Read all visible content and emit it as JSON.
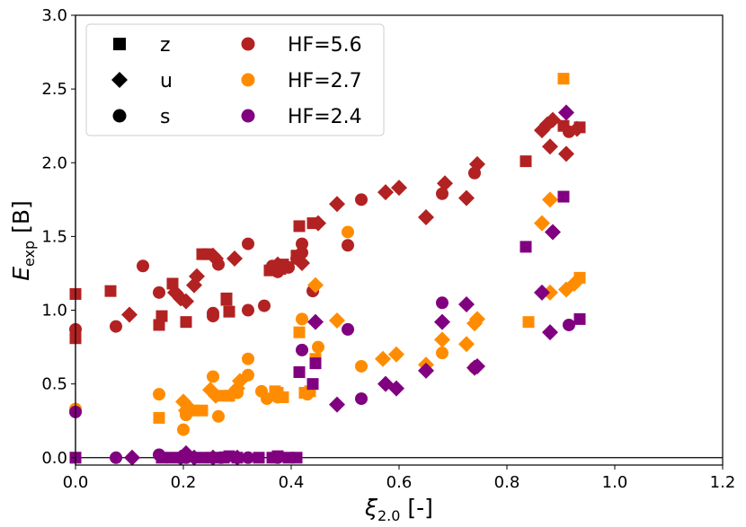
{
  "chart_data": {
    "type": "scatter",
    "title": "",
    "xlabel": {
      "symbol": "ξ",
      "subscript": "2.0",
      "unit": " [-]"
    },
    "ylabel": {
      "symbol": "E",
      "subscript": "exp",
      "unit": " [B]"
    },
    "xlim": [
      0.0,
      1.2
    ],
    "ylim": [
      -0.05,
      3.0
    ],
    "xticks": [
      "0.0",
      "0.2",
      "0.4",
      "0.6",
      "0.8",
      "1.0",
      "1.2"
    ],
    "yticks": [
      "0.0",
      "0.5",
      "1.0",
      "1.5",
      "2.0",
      "2.5",
      "3.0"
    ],
    "grid": false,
    "reference_lines": {
      "horizontal_y": 0.0,
      "vertical_x": 0.0
    },
    "legend_location": "top-left",
    "marker_legend": [
      {
        "marker": "square",
        "label": "z"
      },
      {
        "marker": "diamond",
        "label": "u"
      },
      {
        "marker": "circle",
        "label": "s"
      }
    ],
    "series": [
      {
        "name": "HF=5.6",
        "color": "#b22222",
        "z": [
          [
            0.0,
            1.11
          ],
          [
            0.0,
            0.81
          ],
          [
            0.065,
            1.13
          ],
          [
            0.155,
            0.9
          ],
          [
            0.16,
            0.96
          ],
          [
            0.18,
            1.18
          ],
          [
            0.205,
            0.92
          ],
          [
            0.235,
            1.38
          ],
          [
            0.245,
            1.38
          ],
          [
            0.28,
            1.07
          ],
          [
            0.285,
            0.99
          ],
          [
            0.28,
            1.08
          ],
          [
            0.36,
            1.27
          ],
          [
            0.38,
            1.28
          ],
          [
            0.385,
            1.31
          ],
          [
            0.41,
            1.37
          ],
          [
            0.415,
            1.57
          ],
          [
            0.44,
            1.59
          ],
          [
            0.835,
            2.01
          ],
          [
            0.905,
            2.25
          ],
          [
            0.935,
            2.24
          ]
        ],
        "u": [
          [
            0.1,
            0.97
          ],
          [
            0.185,
            1.12
          ],
          [
            0.195,
            1.08
          ],
          [
            0.205,
            1.06
          ],
          [
            0.22,
            1.17
          ],
          [
            0.225,
            1.23
          ],
          [
            0.255,
            1.37
          ],
          [
            0.26,
            1.35
          ],
          [
            0.295,
            1.35
          ],
          [
            0.375,
            1.31
          ],
          [
            0.42,
            1.32
          ],
          [
            0.45,
            1.59
          ],
          [
            0.485,
            1.72
          ],
          [
            0.575,
            1.8
          ],
          [
            0.6,
            1.83
          ],
          [
            0.65,
            1.63
          ],
          [
            0.685,
            1.86
          ],
          [
            0.725,
            1.76
          ],
          [
            0.745,
            1.99
          ],
          [
            0.865,
            2.22
          ],
          [
            0.875,
            2.26
          ],
          [
            0.885,
            2.29
          ],
          [
            0.88,
            2.11
          ],
          [
            0.91,
            2.06
          ],
          [
            0.93,
            2.23
          ]
        ],
        "s": [
          [
            0.0,
            0.87
          ],
          [
            0.075,
            0.89
          ],
          [
            0.125,
            1.3
          ],
          [
            0.155,
            1.12
          ],
          [
            0.255,
            0.98
          ],
          [
            0.255,
            0.96
          ],
          [
            0.265,
            1.31
          ],
          [
            0.32,
            1.0
          ],
          [
            0.32,
            1.45
          ],
          [
            0.35,
            1.03
          ],
          [
            0.365,
            1.3
          ],
          [
            0.375,
            1.26
          ],
          [
            0.395,
            1.29
          ],
          [
            0.41,
            1.35
          ],
          [
            0.42,
            1.45
          ],
          [
            0.42,
            1.39
          ],
          [
            0.44,
            1.13
          ],
          [
            0.505,
            1.44
          ],
          [
            0.53,
            1.75
          ],
          [
            0.68,
            1.79
          ],
          [
            0.74,
            1.93
          ],
          [
            0.915,
            2.21
          ]
        ]
      },
      {
        "name": "HF=2.7",
        "color": "#ff8c00",
        "z": [
          [
            0.0,
            0.0
          ],
          [
            0.155,
            0.27
          ],
          [
            0.22,
            0.32
          ],
          [
            0.235,
            0.32
          ],
          [
            0.275,
            0.42
          ],
          [
            0.285,
            0.42
          ],
          [
            0.37,
            0.45
          ],
          [
            0.375,
            0.44
          ],
          [
            0.385,
            0.41
          ],
          [
            0.415,
            0.85
          ],
          [
            0.425,
            0.44
          ],
          [
            0.435,
            0.45
          ],
          [
            0.445,
            0.67
          ],
          [
            0.84,
            0.92
          ],
          [
            0.905,
            2.57
          ],
          [
            0.935,
            1.22
          ]
        ],
        "u": [
          [
            0.2,
            0.38
          ],
          [
            0.205,
            0.32
          ],
          [
            0.21,
            0.34
          ],
          [
            0.25,
            0.46
          ],
          [
            0.26,
            0.42
          ],
          [
            0.29,
            0.43
          ],
          [
            0.3,
            0.47
          ],
          [
            0.305,
            0.52
          ],
          [
            0.445,
            1.17
          ],
          [
            0.485,
            0.93
          ],
          [
            0.57,
            0.67
          ],
          [
            0.595,
            0.7
          ],
          [
            0.65,
            0.63
          ],
          [
            0.68,
            0.8
          ],
          [
            0.725,
            0.77
          ],
          [
            0.74,
            0.91
          ],
          [
            0.745,
            0.94
          ],
          [
            0.865,
            1.59
          ],
          [
            0.88,
            1.75
          ],
          [
            0.88,
            1.12
          ],
          [
            0.91,
            1.14
          ],
          [
            0.925,
            1.18
          ]
        ],
        "s": [
          [
            0.0,
            0.33
          ],
          [
            0.155,
            0.43
          ],
          [
            0.2,
            0.19
          ],
          [
            0.205,
            0.29
          ],
          [
            0.205,
            0.3
          ],
          [
            0.255,
            0.55
          ],
          [
            0.265,
            0.28
          ],
          [
            0.3,
            0.44
          ],
          [
            0.32,
            0.67
          ],
          [
            0.32,
            0.56
          ],
          [
            0.345,
            0.45
          ],
          [
            0.355,
            0.4
          ],
          [
            0.375,
            0.41
          ],
          [
            0.42,
            0.94
          ],
          [
            0.43,
            0.43
          ],
          [
            0.45,
            0.75
          ],
          [
            0.505,
            1.53
          ],
          [
            0.53,
            0.62
          ],
          [
            0.68,
            0.71
          ],
          [
            0.74,
            0.61
          ]
        ]
      },
      {
        "name": "HF=2.4",
        "color": "#800080",
        "z": [
          [
            0.0,
            0.0
          ],
          [
            0.16,
            0.0
          ],
          [
            0.18,
            0.0
          ],
          [
            0.2,
            0.0
          ],
          [
            0.235,
            0.0
          ],
          [
            0.255,
            0.0
          ],
          [
            0.275,
            0.0
          ],
          [
            0.285,
            0.01
          ],
          [
            0.3,
            0.0
          ],
          [
            0.34,
            0.0
          ],
          [
            0.365,
            0.0
          ],
          [
            0.375,
            0.01
          ],
          [
            0.395,
            0.0
          ],
          [
            0.41,
            0.0
          ],
          [
            0.415,
            0.58
          ],
          [
            0.44,
            0.5
          ],
          [
            0.445,
            0.64
          ],
          [
            0.835,
            1.43
          ],
          [
            0.905,
            1.77
          ],
          [
            0.935,
            0.94
          ]
        ],
        "u": [
          [
            0.105,
            0.0
          ],
          [
            0.195,
            0.0
          ],
          [
            0.205,
            0.03
          ],
          [
            0.22,
            0.0
          ],
          [
            0.255,
            0.0
          ],
          [
            0.3,
            0.0
          ],
          [
            0.445,
            0.92
          ],
          [
            0.485,
            0.36
          ],
          [
            0.575,
            0.5
          ],
          [
            0.595,
            0.47
          ],
          [
            0.65,
            0.59
          ],
          [
            0.68,
            0.92
          ],
          [
            0.725,
            1.04
          ],
          [
            0.74,
            0.61
          ],
          [
            0.745,
            0.62
          ],
          [
            0.865,
            1.12
          ],
          [
            0.88,
            0.85
          ],
          [
            0.885,
            1.53
          ],
          [
            0.91,
            2.34
          ]
        ],
        "s": [
          [
            0.0,
            0.31
          ],
          [
            0.075,
            0.0
          ],
          [
            0.155,
            0.02
          ],
          [
            0.205,
            0.0
          ],
          [
            0.27,
            0.0
          ],
          [
            0.32,
            0.0
          ],
          [
            0.375,
            0.0
          ],
          [
            0.42,
            0.73
          ],
          [
            0.505,
            0.87
          ],
          [
            0.53,
            0.4
          ],
          [
            0.68,
            1.05
          ],
          [
            0.915,
            0.9
          ]
        ]
      }
    ]
  }
}
